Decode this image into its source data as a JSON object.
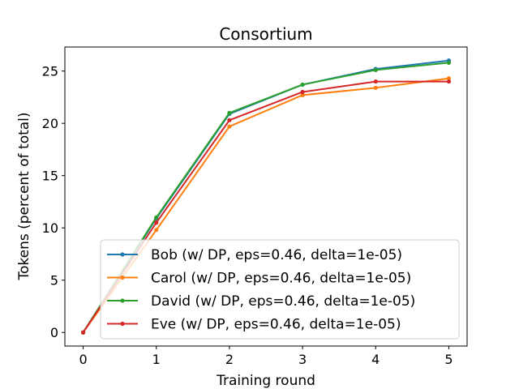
{
  "chart_data": {
    "type": "line",
    "title": "Consortium",
    "xlabel": "Training round",
    "ylabel": "Tokens (percent of total)",
    "x": [
      0,
      1,
      2,
      3,
      4,
      5
    ],
    "xticks": [
      "0",
      "1",
      "2",
      "3",
      "4",
      "5"
    ],
    "yticks": [
      "0",
      "5",
      "10",
      "15",
      "20",
      "25"
    ],
    "xlim": [
      -0.25,
      5.25
    ],
    "ylim": [
      -1.3,
      27.3
    ],
    "grid": false,
    "legend_position": "lower-right",
    "series": [
      {
        "name": "Bob (w/ DP, eps=0.46, delta=1e-05)",
        "color": "#1f77b4",
        "values": [
          0,
          10.9,
          20.9,
          23.7,
          25.2,
          26.0
        ]
      },
      {
        "name": "Carol (w/ DP, eps=0.46, delta=1e-05)",
        "color": "#ff7f0e",
        "values": [
          0,
          9.8,
          19.7,
          22.7,
          23.4,
          24.3
        ]
      },
      {
        "name": "David (w/ DP, eps=0.46, delta=1e-05)",
        "color": "#2ca02c",
        "values": [
          0,
          11.0,
          21.0,
          23.7,
          25.1,
          25.8
        ]
      },
      {
        "name": "Eve (w/ DP, eps=0.46, delta=1e-05)",
        "color": "#d62728",
        "values": [
          0,
          10.5,
          20.3,
          23.0,
          24.0,
          24.0
        ]
      }
    ]
  }
}
